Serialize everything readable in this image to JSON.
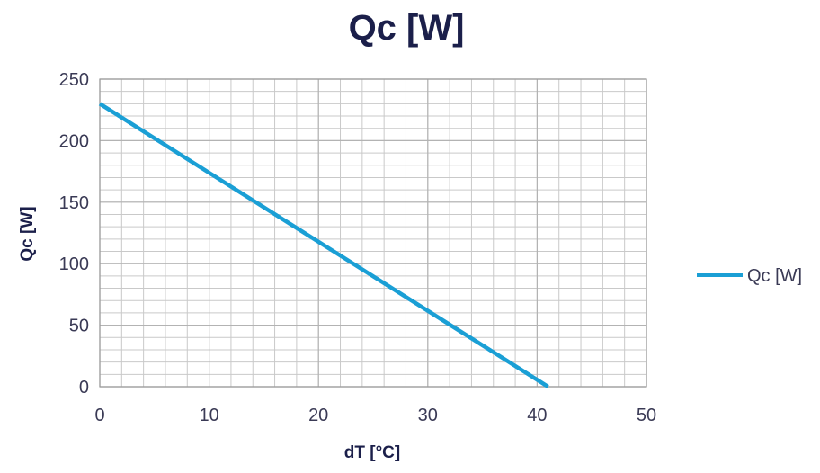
{
  "chart_data": {
    "type": "line",
    "title": "Qc [W]",
    "xlabel": "dT [°C]",
    "ylabel": "Qc [W]",
    "xlim": [
      0,
      50
    ],
    "ylim": [
      0,
      250
    ],
    "x_ticks": [
      "0",
      "10",
      "20",
      "30",
      "40",
      "50"
    ],
    "y_ticks": [
      "0",
      "50",
      "100",
      "150",
      "200",
      "250"
    ],
    "grid": true,
    "legend_position": "right",
    "series": [
      {
        "name": "Qc [W]",
        "color": "#1a9fd5",
        "x": [
          0,
          41
        ],
        "y": [
          230,
          0
        ]
      }
    ],
    "colors": {
      "title": "#1b1f4a",
      "axis_title": "#1b1f4a",
      "tick_label": "#3a3a55",
      "grid": "#c9c9c9",
      "axis_frame": "#9a9a9a"
    }
  }
}
